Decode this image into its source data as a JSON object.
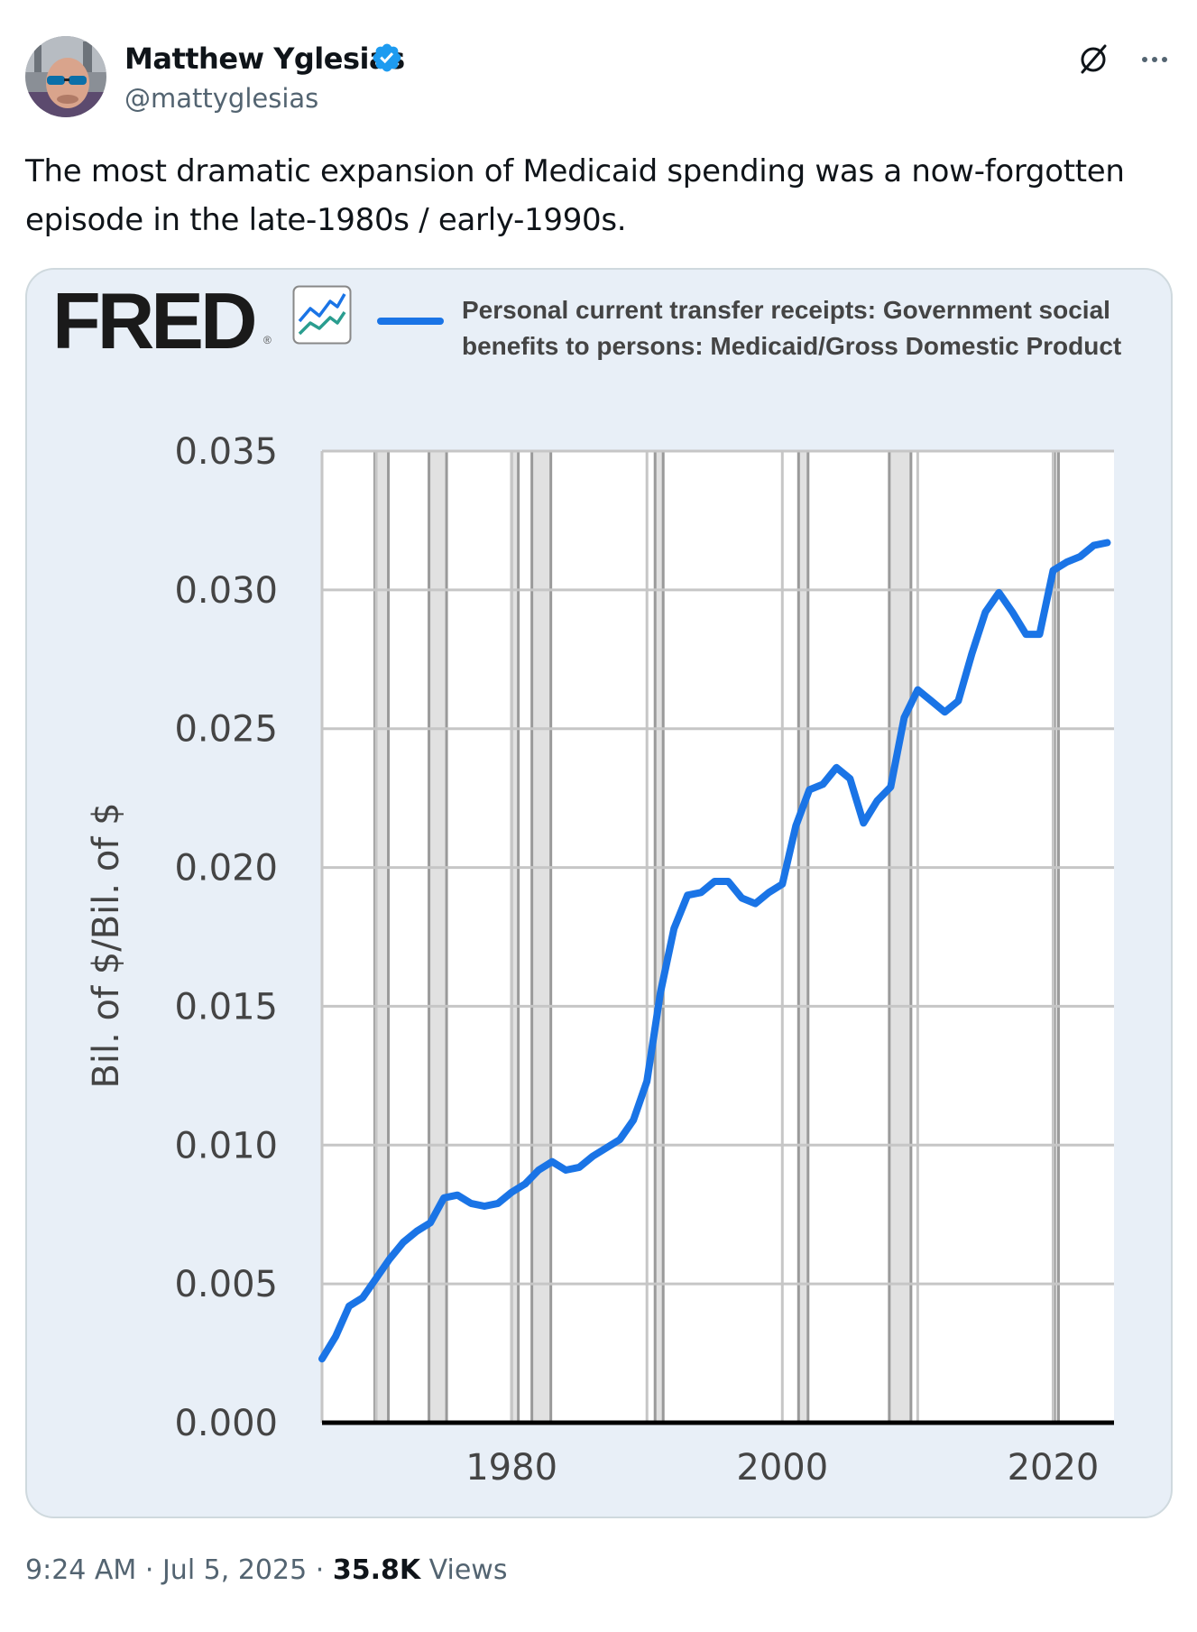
{
  "author": {
    "name": "Matthew Yglesias",
    "handle": "@mattyglesias"
  },
  "tweet": {
    "text": "The most dramatic expansion of Medicaid spending was a now-forgotten episode in the late-1980s / early-1990s."
  },
  "fred": {
    "logo": "FRED",
    "reg": "®"
  },
  "meta": {
    "time": "9:24 AM",
    "sep1": "·",
    "date": "Jul 5, 2025",
    "sep2": "·",
    "views": "35.8K",
    "views_label": "Views"
  },
  "colors": {
    "line": "#1a74e6",
    "card_bg": "#e8eff7",
    "verified": "#1d9bf0"
  },
  "chart_data": {
    "type": "line",
    "title": "",
    "legend": "Personal current transfer receipts: Government social benefits to persons: Medicaid/Gross Domestic Product",
    "ylabel": "Bil. of $/Bil. of $",
    "xlabel": "",
    "xlim": [
      1966,
      2024.5
    ],
    "ylim": [
      0,
      0.035
    ],
    "y_ticks": [
      "0.000",
      "0.005",
      "0.010",
      "0.015",
      "0.020",
      "0.025",
      "0.030",
      "0.035"
    ],
    "x_ticks": [
      "1980",
      "2000",
      "2020"
    ],
    "recessions": [
      [
        1969.9,
        1970.9
      ],
      [
        1973.9,
        1975.2
      ],
      [
        1980.0,
        1980.5
      ],
      [
        1981.5,
        1982.9
      ],
      [
        1990.6,
        1991.2
      ],
      [
        2001.2,
        2001.9
      ],
      [
        2007.9,
        2009.5
      ],
      [
        2020.1,
        2020.4
      ]
    ],
    "series": [
      {
        "name": "Medicaid/GDP",
        "x": [
          1966,
          1967,
          1968,
          1969,
          1970,
          1971,
          1972,
          1973,
          1974,
          1975,
          1976,
          1977,
          1978,
          1979,
          1980,
          1981,
          1982,
          1983,
          1984,
          1985,
          1986,
          1987,
          1988,
          1989,
          1990,
          1991,
          1992,
          1993,
          1994,
          1995,
          1996,
          1997,
          1998,
          1999,
          2000,
          2001,
          2002,
          2003,
          2004,
          2005,
          2006,
          2007,
          2008,
          2009,
          2010,
          2011,
          2012,
          2013,
          2014,
          2015,
          2016,
          2017,
          2018,
          2019,
          2020,
          2021,
          2022,
          2023,
          2024
        ],
        "values": [
          0.0023,
          0.0031,
          0.0042,
          0.0045,
          0.0052,
          0.0059,
          0.0065,
          0.0069,
          0.0072,
          0.0081,
          0.0082,
          0.0079,
          0.0078,
          0.0079,
          0.0083,
          0.0086,
          0.0091,
          0.0094,
          0.0091,
          0.0092,
          0.0096,
          0.0099,
          0.0102,
          0.0109,
          0.0123,
          0.0155,
          0.0178,
          0.019,
          0.0191,
          0.0195,
          0.0195,
          0.0189,
          0.0187,
          0.0191,
          0.0194,
          0.0215,
          0.0228,
          0.023,
          0.0236,
          0.0232,
          0.0216,
          0.0224,
          0.0229,
          0.0254,
          0.0264,
          0.026,
          0.0256,
          0.026,
          0.0277,
          0.0292,
          0.0299,
          0.0292,
          0.0284,
          0.0284,
          0.0307,
          0.031,
          0.0312,
          0.0316,
          0.0317
        ]
      }
    ]
  }
}
